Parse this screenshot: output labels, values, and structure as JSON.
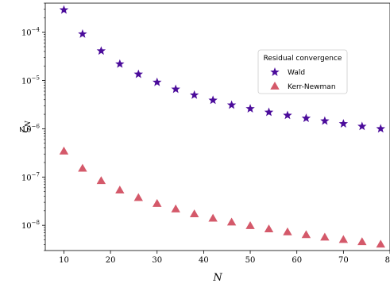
{
  "chart_data": {
    "type": "scatter",
    "xlabel": "N",
    "ylabel": "ζN",
    "ylabel_main": "ζ",
    "ylabel_sub": "N",
    "xlim": [
      6,
      80
    ],
    "ylim": [
      3e-09,
      0.0004
    ],
    "yscale": "log",
    "x_ticks": [
      10,
      20,
      30,
      40,
      50,
      60,
      70,
      80
    ],
    "x_tick_labels": [
      "10",
      "20",
      "30",
      "40",
      "50",
      "60",
      "70",
      "80"
    ],
    "y_ticks": [
      1e-08,
      1e-07,
      1e-06,
      1e-05,
      0.0001
    ],
    "y_tick_mantissa": [
      "10",
      "10",
      "10",
      "10",
      "10"
    ],
    "y_tick_exponents": [
      "−8",
      "−7",
      "−6",
      "−5",
      "−4"
    ],
    "legend": {
      "title": "Residual convergence",
      "placement": "upper-right"
    },
    "series": [
      {
        "name": "Wald",
        "marker": "star",
        "color": "#4b0c9b",
        "x": [
          10,
          14,
          18,
          22,
          26,
          30,
          34,
          38,
          42,
          46,
          50,
          54,
          58,
          62,
          66,
          70,
          74,
          78
        ],
        "y": [
          0.00029,
          9.2e-05,
          4.1e-05,
          2.2e-05,
          1.35e-05,
          9.2e-06,
          6.6e-06,
          5e-06,
          3.9e-06,
          3.1e-06,
          2.6e-06,
          2.2e-06,
          1.9e-06,
          1.65e-06,
          1.45e-06,
          1.27e-06,
          1.12e-06,
          1e-06
        ]
      },
      {
        "name": "Kerr-Newman",
        "marker": "triangle",
        "color": "#d4596a",
        "x": [
          10,
          14,
          18,
          22,
          26,
          30,
          34,
          38,
          42,
          46,
          50,
          54,
          58,
          62,
          66,
          70,
          74,
          78
        ],
        "y": [
          3.4e-07,
          1.5e-07,
          8.3e-08,
          5.3e-08,
          3.7e-08,
          2.8e-08,
          2.15e-08,
          1.7e-08,
          1.38e-08,
          1.15e-08,
          9.7e-09,
          8.3e-09,
          7.2e-09,
          6.3e-09,
          5.6e-09,
          5e-09,
          4.5e-09,
          4e-09
        ]
      }
    ]
  }
}
